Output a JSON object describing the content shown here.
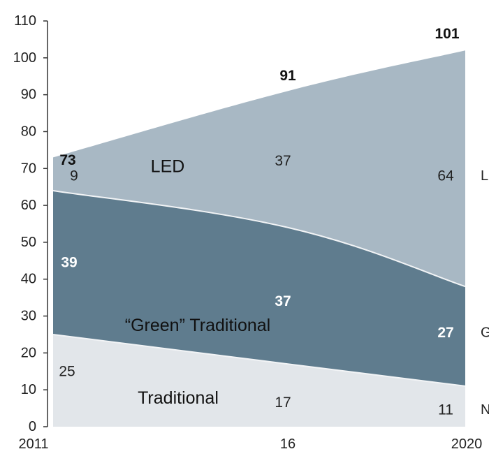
{
  "chart_data": {
    "type": "area",
    "stacked": true,
    "x": [
      "2011",
      "16",
      "2020"
    ],
    "xticks": [
      "2011",
      "16",
      "2020"
    ],
    "yticks": [
      0,
      10,
      20,
      30,
      40,
      50,
      60,
      70,
      80,
      90,
      100,
      110
    ],
    "ylim": [
      0,
      110
    ],
    "series": [
      {
        "name": "Traditional",
        "values": [
          25,
          17,
          11
        ],
        "labels": [
          "25",
          "17",
          "11"
        ],
        "color": "#e2e6ea"
      },
      {
        "name": "“Green” Traditional",
        "values": [
          39,
          37,
          27
        ],
        "labels": [
          "39",
          "37",
          "27"
        ],
        "color": "#5f7c8e"
      },
      {
        "name": "LED",
        "values": [
          9,
          37,
          64
        ],
        "labels": [
          "9",
          "37",
          "64"
        ],
        "color": "#a8b8c4"
      }
    ],
    "totals": [
      "73",
      "91",
      "101"
    ],
    "right_edge_labels": [
      "L",
      "G",
      "N"
    ]
  },
  "colors": {
    "text": "#222222",
    "seg_light_text": "#ffffff",
    "boundary": "#f2f4f6"
  }
}
